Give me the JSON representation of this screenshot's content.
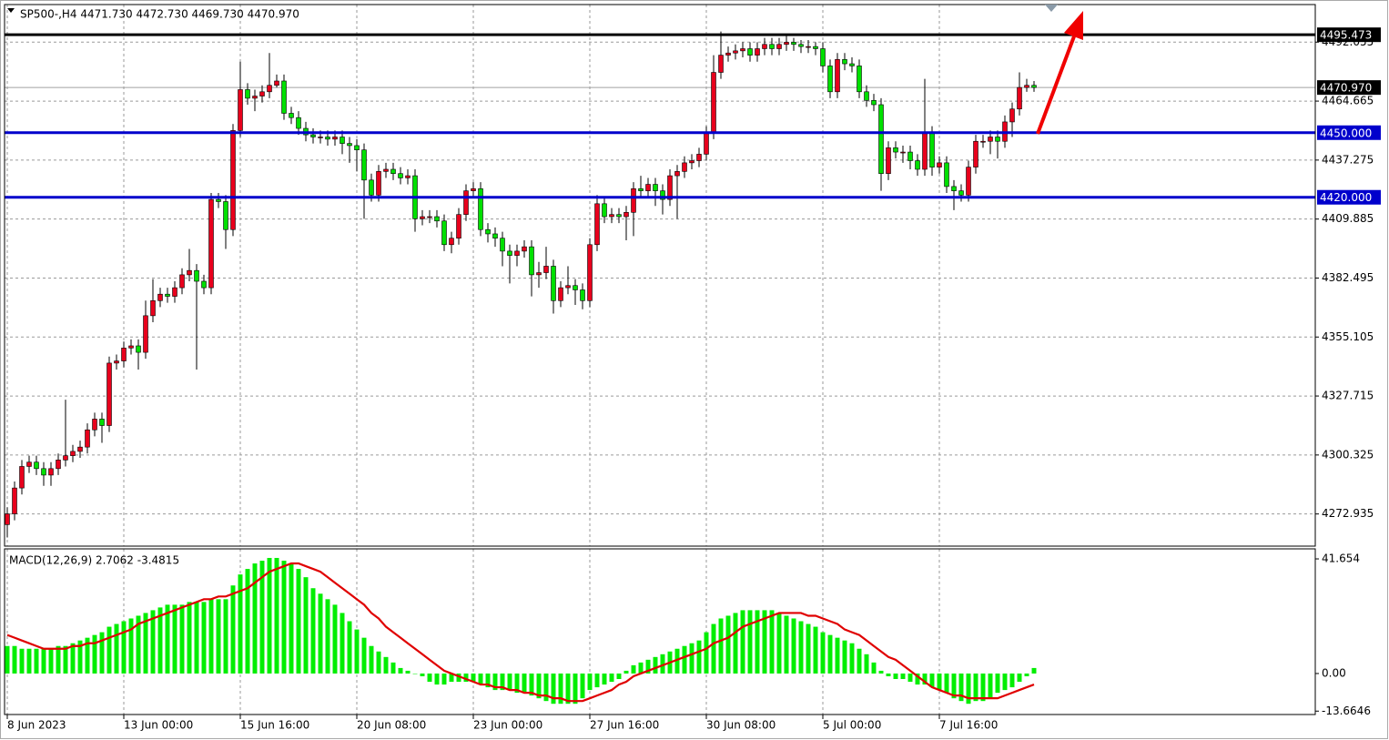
{
  "chart_data": [
    {
      "type": "candlestick",
      "title": "SP500-,H4  4471.730 4472.730 4469.730 4470.970",
      "up_color": "#e8001c",
      "down_color": "#00e000",
      "wick_color": "#000000",
      "open": [
        4268,
        4273,
        4285,
        4295,
        4297,
        4294,
        4291,
        4294,
        4298,
        4300,
        4302,
        4304,
        4312,
        4317,
        4314,
        4343,
        4344,
        4350,
        4351,
        4348,
        4365,
        4372,
        4375,
        4374,
        4378,
        4384,
        4386,
        4381,
        4378,
        4419,
        4418,
        4405,
        4451,
        4470,
        4466,
        4467,
        4469,
        4472,
        4474,
        4459,
        4457,
        4452,
        4449,
        4448,
        4448,
        4447,
        4448,
        4445,
        4444,
        4442,
        4428,
        4421,
        4432,
        4433,
        4431,
        4429,
        4430,
        4410,
        4411,
        4411,
        4409,
        4398,
        4401,
        4412,
        4423,
        4424,
        4405,
        4403,
        4401,
        4395,
        4393,
        4395,
        4397,
        4384,
        4385,
        4388,
        4372,
        4378,
        4379,
        4377,
        4372,
        4398,
        4417,
        4411,
        4412,
        4411,
        4413,
        4424,
        4423,
        4426,
        4423,
        4419,
        4430,
        4432,
        4436,
        4437,
        4440,
        4450,
        4478,
        4486,
        4487,
        4488,
        4489,
        4486,
        4489,
        4491,
        4489,
        4491,
        4492,
        4491,
        4490,
        4490,
        4489,
        4481,
        4469,
        4484,
        4482,
        4481,
        4469,
        4465,
        4463,
        4431,
        4443,
        4441,
        4441,
        4437,
        4433,
        4450,
        4434,
        4436,
        4425,
        4423,
        4421,
        4434,
        4446,
        4446,
        4448,
        4446,
        4455,
        4461,
        4471,
        4472
      ],
      "high": [
        4276,
        4288,
        4298,
        4300,
        4300,
        4297,
        4297,
        4301,
        4326,
        4305,
        4307,
        4315,
        4320,
        4320,
        4346,
        4347,
        4353,
        4354,
        4354,
        4372,
        4382,
        4378,
        4378,
        4381,
        4387,
        4396,
        4389,
        4384,
        4422,
        4422,
        4421,
        4454,
        4483,
        4473,
        4470,
        4472,
        4487,
        4477,
        4477,
        4462,
        4460,
        4455,
        4452,
        4451,
        4451,
        4451,
        4451,
        4448,
        4447,
        4445,
        4431,
        4435,
        4436,
        4436,
        4434,
        4433,
        4433,
        4414,
        4414,
        4414,
        4412,
        4404,
        4415,
        4426,
        4427,
        4427,
        4408,
        4406,
        4404,
        4398,
        4398,
        4400,
        4400,
        4390,
        4397,
        4391,
        4381,
        4388,
        4382,
        4380,
        4401,
        4421,
        4420,
        4415,
        4415,
        4416,
        4427,
        4430,
        4429,
        4429,
        4426,
        4433,
        4435,
        4439,
        4440,
        4443,
        4453,
        4486,
        4497,
        4490,
        4491,
        4492,
        4492,
        4492,
        4494,
        4494,
        4494,
        4495,
        4494,
        4493,
        4493,
        4492,
        4492,
        4484,
        4487,
        4487,
        4485,
        4484,
        4472,
        4468,
        4466,
        4446,
        4446,
        4444,
        4444,
        4440,
        4475,
        4453,
        4439,
        4439,
        4428,
        4426,
        4437,
        4449,
        4449,
        4451,
        4451,
        4458,
        4464,
        4478,
        4475,
        4474
      ],
      "low": [
        4262,
        4270,
        4282,
        4292,
        4291,
        4286,
        4286,
        4291,
        4295,
        4297,
        4299,
        4301,
        4309,
        4306,
        4311,
        4340,
        4341,
        4347,
        4340,
        4345,
        4362,
        4369,
        4371,
        4371,
        4375,
        4381,
        4340,
        4375,
        4375,
        4415,
        4396,
        4402,
        4448,
        4463,
        4460,
        4464,
        4466,
        4471,
        4456,
        4454,
        4449,
        4446,
        4445,
        4445,
        4444,
        4444,
        4440,
        4436,
        4432,
        4410,
        4418,
        4418,
        4429,
        4428,
        4426,
        4426,
        4404,
        4407,
        4408,
        4406,
        4395,
        4394,
        4398,
        4409,
        4420,
        4402,
        4399,
        4397,
        4388,
        4380,
        4388,
        4392,
        4374,
        4378,
        4382,
        4366,
        4369,
        4375,
        4370,
        4368,
        4369,
        4395,
        4408,
        4408,
        4408,
        4400,
        4402,
        4420,
        4420,
        4416,
        4412,
        4416,
        4410,
        4429,
        4433,
        4434,
        4437,
        4447,
        4475,
        4483,
        4484,
        4485,
        4483,
        4483,
        4486,
        4486,
        4486,
        4488,
        4488,
        4487,
        4487,
        4486,
        4478,
        4466,
        4466,
        4479,
        4478,
        4466,
        4462,
        4460,
        4423,
        4428,
        4438,
        4436,
        4433,
        4430,
        4430,
        4430,
        4431,
        4422,
        4414,
        4418,
        4418,
        4431,
        4443,
        4440,
        4438,
        4443,
        4448,
        4458,
        4469,
        4469
      ],
      "close": [
        4273,
        4285,
        4295,
        4297,
        4294,
        4291,
        4294,
        4298,
        4300,
        4302,
        4304,
        4312,
        4317,
        4314,
        4343,
        4344,
        4350,
        4351,
        4348,
        4365,
        4372,
        4375,
        4374,
        4378,
        4384,
        4386,
        4381,
        4378,
        4419,
        4418,
        4405,
        4451,
        4470,
        4466,
        4467,
        4469,
        4472,
        4474,
        4459,
        4457,
        4452,
        4449,
        4448,
        4448,
        4447,
        4448,
        4445,
        4444,
        4442,
        4428,
        4421,
        4432,
        4433,
        4431,
        4429,
        4430,
        4410,
        4411,
        4411,
        4409,
        4398,
        4401,
        4412,
        4423,
        4424,
        4405,
        4403,
        4401,
        4395,
        4393,
        4395,
        4397,
        4384,
        4385,
        4388,
        4372,
        4378,
        4379,
        4377,
        4372,
        4398,
        4417,
        4411,
        4412,
        4411,
        4413,
        4424,
        4423,
        4426,
        4423,
        4419,
        4430,
        4432,
        4436,
        4437,
        4440,
        4450,
        4478,
        4486,
        4487,
        4488,
        4489,
        4486,
        4489,
        4491,
        4489,
        4491,
        4492,
        4491,
        4490,
        4490,
        4489,
        4481,
        4469,
        4484,
        4482,
        4481,
        4469,
        4465,
        4463,
        4431,
        4443,
        4441,
        4441,
        4437,
        4433,
        4450,
        4434,
        4436,
        4425,
        4423,
        4421,
        4434,
        4446,
        4446,
        4448,
        4446,
        4455,
        4461,
        4471,
        4472,
        4471
      ],
      "xlim": [
        -0.375,
        179.625
      ],
      "xticks": [
        {
          "value": 0,
          "label": "8 Jun 2023"
        },
        {
          "value": 16,
          "label": "13 Jun 00:00"
        },
        {
          "value": 32,
          "label": "15 Jun 16:00"
        },
        {
          "value": 48,
          "label": "20 Jun 08:00"
        },
        {
          "value": 64,
          "label": "23 Jun 00:00"
        },
        {
          "value": 80,
          "label": "27 Jun 16:00"
        },
        {
          "value": 96,
          "label": "30 Jun 08:00"
        },
        {
          "value": 112,
          "label": "5 Jul 00:00"
        },
        {
          "value": 128,
          "label": "7 Jul 16:00"
        }
      ],
      "ylim": [
        4258,
        4509.5
      ],
      "yticks": [
        4492.055,
        4464.665,
        4437.275,
        4409.885,
        4382.495,
        4355.105,
        4327.715,
        4300.325,
        4272.935
      ],
      "grid": true,
      "levels": [
        {
          "value": 4495.473,
          "color": "#000000"
        },
        {
          "value": 4450,
          "label": "4450.000",
          "color": "#0000cc"
        },
        {
          "value": 4420,
          "label": "4420.000",
          "color": "#0000cc"
        }
      ],
      "last_price": {
        "value": 4470.97,
        "label": "4470.970"
      }
    },
    {
      "type": "macd",
      "title": "MACD(12,26,9) 2.7062 -3.4815",
      "histogram_color": "#00ee00",
      "signal_color": "#e00000",
      "histogram": [
        10,
        10,
        9,
        9,
        9,
        9,
        9,
        10,
        10,
        11,
        12,
        13,
        14,
        15,
        17,
        18,
        19,
        20,
        21,
        22,
        23,
        24,
        25,
        25,
        25,
        26,
        26,
        26,
        27,
        27,
        27,
        32,
        36,
        38,
        40,
        41,
        42,
        42,
        41,
        40,
        38,
        35,
        31,
        29,
        27,
        25,
        22,
        19,
        16,
        13,
        10,
        8,
        6,
        4,
        2,
        1,
        0,
        -1,
        -3,
        -4,
        -4,
        -3,
        -3,
        -3,
        -3,
        -4,
        -5,
        -6,
        -6,
        -6,
        -7,
        -7,
        -8,
        -9,
        -10,
        -11,
        -11,
        -11,
        -11,
        -9,
        -6,
        -5,
        -4,
        -3,
        -2,
        1,
        3,
        4,
        5,
        6,
        7,
        8,
        9,
        10,
        11,
        12,
        15,
        18,
        20,
        21,
        22,
        23,
        23,
        23,
        23,
        23,
        22,
        21,
        20,
        19,
        18,
        17,
        15,
        14,
        13,
        12,
        11,
        9,
        7,
        4,
        1,
        -1,
        -2,
        -2,
        -3,
        -4,
        -4,
        -5,
        -6,
        -7,
        -9,
        -10,
        -11,
        -10,
        -10,
        -9,
        -7,
        -6,
        -5,
        -3,
        -1,
        2
      ],
      "signal": [
        14,
        13,
        12,
        11,
        10,
        9,
        9,
        9,
        9,
        10,
        10,
        11,
        11,
        12,
        13,
        14,
        15,
        16,
        18,
        19,
        20,
        21,
        22,
        23,
        24,
        25,
        26,
        27,
        27,
        28,
        28,
        29,
        30,
        31,
        33,
        35,
        37,
        38,
        39,
        40,
        40,
        39,
        38,
        37,
        35,
        33,
        31,
        29,
        27,
        25,
        22,
        20,
        17,
        15,
        13,
        11,
        9,
        7,
        5,
        3,
        1,
        0,
        -1,
        -2,
        -3,
        -4,
        -4,
        -5,
        -5,
        -6,
        -6,
        -7,
        -7,
        -8,
        -8,
        -9,
        -9,
        -10,
        -10,
        -10,
        -9,
        -8,
        -7,
        -6,
        -4,
        -3,
        -1,
        0,
        1,
        2,
        3,
        4,
        5,
        6,
        7,
        8,
        9,
        11,
        12,
        13,
        15,
        17,
        18,
        19,
        20,
        21,
        22,
        22,
        22,
        22,
        21,
        21,
        20,
        19,
        18,
        16,
        15,
        14,
        12,
        10,
        8,
        6,
        5,
        3,
        1,
        -1,
        -3,
        -5,
        -6,
        -7,
        -8,
        -8,
        -9,
        -9,
        -9,
        -9,
        -9,
        -8,
        -7,
        -6,
        -5,
        -4
      ],
      "ylim": [
        -14.9,
        45.3
      ],
      "yticks": [
        41.654,
        {
          "value": 0,
          "label": "0.00"
        },
        -13.6646
      ]
    }
  ]
}
